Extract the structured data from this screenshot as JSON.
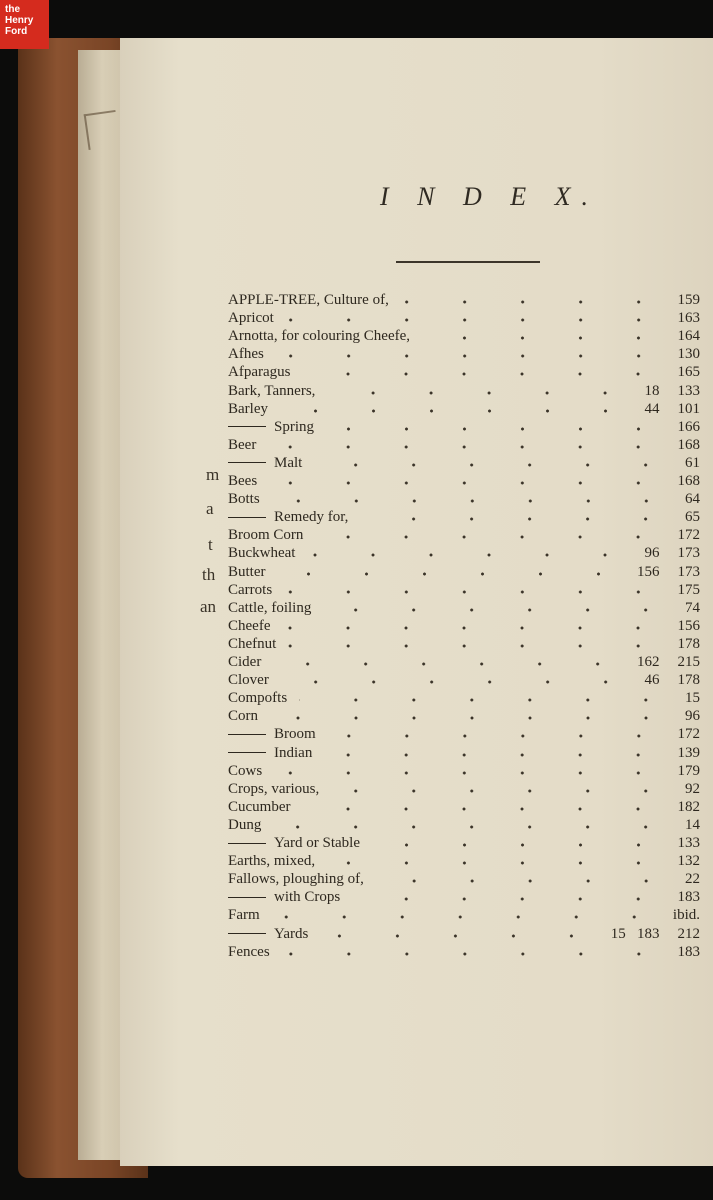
{
  "logo": {
    "line1": "the",
    "line2": "Henry",
    "line3": "Ford"
  },
  "title": "I N D E X.",
  "margin_fragments": [
    "m",
    "a",
    "t",
    "th",
    "an"
  ],
  "entries": [
    {
      "label": "APPLE-TREE, Culture of,",
      "pages": "159"
    },
    {
      "label": "Apricot",
      "pages": "163"
    },
    {
      "label": "Arnotta, for colouring Cheefe,",
      "pages": "164"
    },
    {
      "label": "Afhes",
      "pages": "130"
    },
    {
      "label": "Afparagus",
      "pages": "165"
    },
    {
      "label": "Bark, Tanners,",
      "pages": "133",
      "extra": "18"
    },
    {
      "label": "Barley",
      "pages": "101",
      "extra": "44"
    },
    {
      "label": "Spring",
      "sub": true,
      "pages": "166"
    },
    {
      "label": "Beer",
      "pages": "168"
    },
    {
      "label": "Malt",
      "sub": true,
      "pages": "61"
    },
    {
      "label": "Bees",
      "pages": "168"
    },
    {
      "label": "Botts",
      "pages": "64"
    },
    {
      "label": "Remedy for,",
      "sub": true,
      "pages": "65"
    },
    {
      "label": "Broom Corn",
      "pages": "172"
    },
    {
      "label": "Buckwheat",
      "pages": "173",
      "extra": "96"
    },
    {
      "label": "Butter",
      "pages": "173",
      "extra": "156"
    },
    {
      "label": "Carrots",
      "pages": "175"
    },
    {
      "label": "Cattle, foiling",
      "pages": "74"
    },
    {
      "label": "Cheefe",
      "pages": "156"
    },
    {
      "label": "Chefnut",
      "pages": "178"
    },
    {
      "label": "Cider",
      "pages": "215",
      "extra": "162"
    },
    {
      "label": "Clover",
      "pages": "178",
      "extra": "46"
    },
    {
      "label": "Compofts",
      "pages": "15"
    },
    {
      "label": "Corn",
      "pages": "96"
    },
    {
      "label": "Broom",
      "sub": true,
      "pages": "172"
    },
    {
      "label": "Indian",
      "sub": true,
      "pages": "139"
    },
    {
      "label": "Cows",
      "pages": "179"
    },
    {
      "label": "Crops, various,",
      "pages": "92"
    },
    {
      "label": "Cucumber",
      "pages": "182"
    },
    {
      "label": "Dung",
      "pages": "14"
    },
    {
      "label": "Yard or Stable",
      "sub": true,
      "pages": "133"
    },
    {
      "label": "Earths, mixed,",
      "pages": "132"
    },
    {
      "label": "Fallows, ploughing of,",
      "pages": "22"
    },
    {
      "label": "with Crops",
      "sub": true,
      "pages": "183"
    },
    {
      "label": "Farm",
      "pages": "ibid."
    },
    {
      "label": "Yards",
      "sub": true,
      "pages": "212",
      "extra": "15   183"
    },
    {
      "label": "Fences",
      "pages": "183"
    }
  ]
}
